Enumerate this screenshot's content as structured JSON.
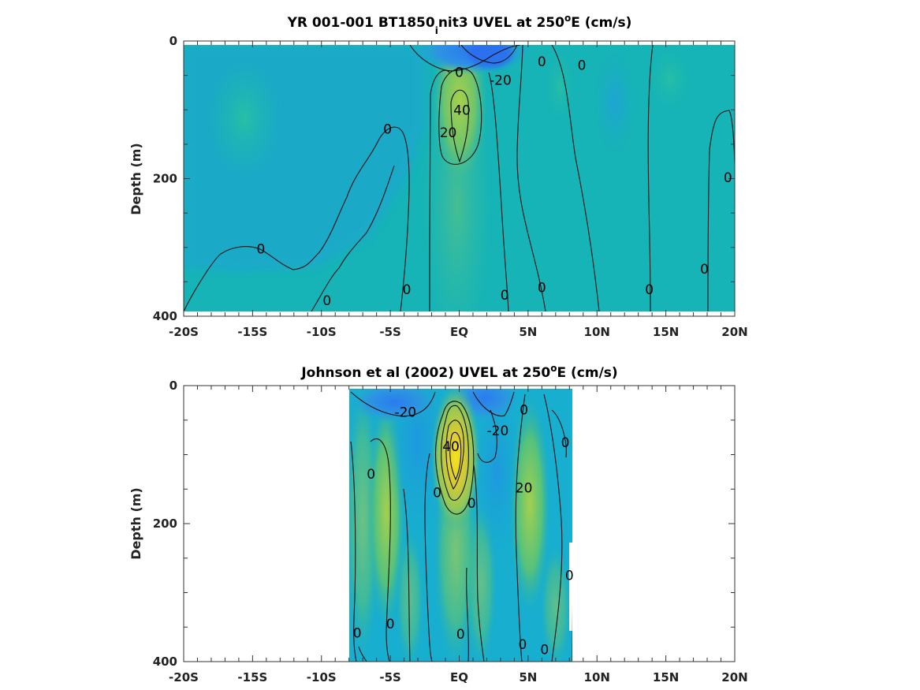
{
  "chart_data": [
    {
      "type": "heatmap",
      "title_main": "YR 001-001 BT1850",
      "title_sub": "i",
      "title_tail": "nit3 UVEL at 250",
      "title_sup": "o",
      "title_end": "E (cm/s)",
      "ylabel": "Depth (m)",
      "xlabel": "",
      "xlim": [
        -20,
        20
      ],
      "ylim": [
        0,
        400
      ],
      "x_ticks": [
        {
          "value": -20,
          "label": "-20S"
        },
        {
          "value": -15,
          "label": "-15S"
        },
        {
          "value": -10,
          "label": "-10S"
        },
        {
          "value": -5,
          "label": "-5S"
        },
        {
          "value": 0,
          "label": "EQ"
        },
        {
          "value": 5,
          "label": "5N"
        },
        {
          "value": 10,
          "label": "10N"
        },
        {
          "value": 15,
          "label": "15N"
        },
        {
          "value": 20,
          "label": "20N"
        }
      ],
      "y_ticks": [
        {
          "value": 0,
          "label": "0"
        },
        {
          "value": 200,
          "label": "200"
        },
        {
          "value": 400,
          "label": "400"
        }
      ],
      "data_extent_lat": [
        -20,
        20
      ],
      "data_extent_depth": [
        5,
        395
      ],
      "contour_labels": [
        {
          "text": "0",
          "lat": 0,
          "depth": 45
        },
        {
          "text": "-20",
          "lat": 3,
          "depth": 57
        },
        {
          "text": "40",
          "lat": 0.2,
          "depth": 100
        },
        {
          "text": "20",
          "lat": -0.8,
          "depth": 133
        },
        {
          "text": "0",
          "lat": 6,
          "depth": 30
        },
        {
          "text": "0",
          "lat": 8.9,
          "depth": 35
        },
        {
          "text": "0",
          "lat": -5.2,
          "depth": 128
        },
        {
          "text": "0",
          "lat": 19.5,
          "depth": 198
        },
        {
          "text": "0",
          "lat": -14.4,
          "depth": 302
        },
        {
          "text": "0",
          "lat": 17.8,
          "depth": 331
        },
        {
          "text": "0",
          "lat": -3.8,
          "depth": 361
        },
        {
          "text": "0",
          "lat": 6,
          "depth": 358
        },
        {
          "text": "0",
          "lat": 13.8,
          "depth": 361
        },
        {
          "text": "0",
          "lat": 3.3,
          "depth": 369
        },
        {
          "text": "0",
          "lat": -9.6,
          "depth": 377
        }
      ]
    },
    {
      "type": "heatmap",
      "title_main": "Johnson et al (2002) UVEL at 250",
      "title_sup": "o",
      "title_end": "E (cm/s)",
      "ylabel": "Depth (m)",
      "xlabel": "",
      "xlim": [
        -20,
        20
      ],
      "ylim": [
        0,
        400
      ],
      "x_ticks": [
        {
          "value": -20,
          "label": "-20S"
        },
        {
          "value": -15,
          "label": "-15S"
        },
        {
          "value": -10,
          "label": "-10S"
        },
        {
          "value": -5,
          "label": "-5S"
        },
        {
          "value": 0,
          "label": "EQ"
        },
        {
          "value": 5,
          "label": "5N"
        },
        {
          "value": 10,
          "label": "10N"
        },
        {
          "value": 15,
          "label": "15N"
        },
        {
          "value": 20,
          "label": "20N"
        }
      ],
      "y_ticks": [
        {
          "value": 0,
          "label": "0"
        },
        {
          "value": 200,
          "label": "200"
        },
        {
          "value": 400,
          "label": "400"
        }
      ],
      "data_extent_lat": [
        -8,
        8.2
      ],
      "data_extent_depth": [
        5,
        400
      ],
      "contour_labels": [
        {
          "text": "-20",
          "lat": -3.9,
          "depth": 38
        },
        {
          "text": "-20",
          "lat": 2.8,
          "depth": 65
        },
        {
          "text": "0",
          "lat": 4.7,
          "depth": 35
        },
        {
          "text": "0",
          "lat": 7.7,
          "depth": 82
        },
        {
          "text": "40",
          "lat": -0.6,
          "depth": 88
        },
        {
          "text": "20",
          "lat": 4.7,
          "depth": 148
        },
        {
          "text": "0",
          "lat": -6.4,
          "depth": 128
        },
        {
          "text": "0",
          "lat": -1.6,
          "depth": 155
        },
        {
          "text": "0",
          "lat": 0.9,
          "depth": 170
        },
        {
          "text": "0",
          "lat": 8,
          "depth": 275
        },
        {
          "text": "0",
          "lat": -7.4,
          "depth": 358
        },
        {
          "text": "0",
          "lat": -5,
          "depth": 345
        },
        {
          "text": "0",
          "lat": 0.1,
          "depth": 360
        },
        {
          "text": "0",
          "lat": 4.6,
          "depth": 375
        },
        {
          "text": "0",
          "lat": 6.2,
          "depth": 382
        }
      ]
    }
  ]
}
